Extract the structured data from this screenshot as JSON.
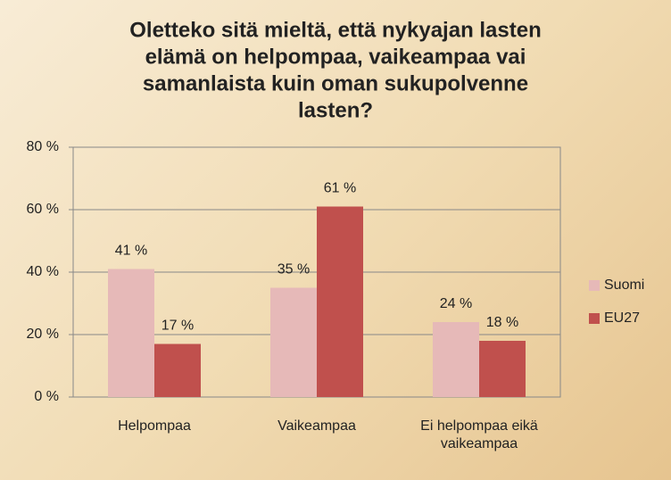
{
  "chart_data": {
    "type": "bar",
    "title": [
      "Oletteko sitä mieltä, että nykyajan lasten",
      "elämä on helpompaa, vaikeampaa vai",
      "samanlaista kuin oman sukupolvenne",
      "lasten?"
    ],
    "categories": [
      "Helpompaa",
      "Vaikeampaa",
      "Ei helpompaa eikä vaikeampaa"
    ],
    "series": [
      {
        "name": "Suomi",
        "color": "#e6b9b8",
        "values": [
          41,
          35,
          24
        ],
        "value_labels": [
          "41 %",
          "35 %",
          "24 %"
        ]
      },
      {
        "name": "EU27",
        "color": "#c0504d",
        "values": [
          17,
          61,
          18
        ],
        "value_labels": [
          "17 %",
          "61 %",
          "18 %"
        ]
      }
    ],
    "ylim": [
      0,
      80
    ],
    "yticks": [
      {
        "value": 0,
        "label": "0 %"
      },
      {
        "value": 20,
        "label": "20 %"
      },
      {
        "value": 40,
        "label": "40 %"
      },
      {
        "value": 60,
        "label": "60 %"
      },
      {
        "value": 80,
        "label": "80 %"
      }
    ],
    "grid": true,
    "legend": "right"
  }
}
